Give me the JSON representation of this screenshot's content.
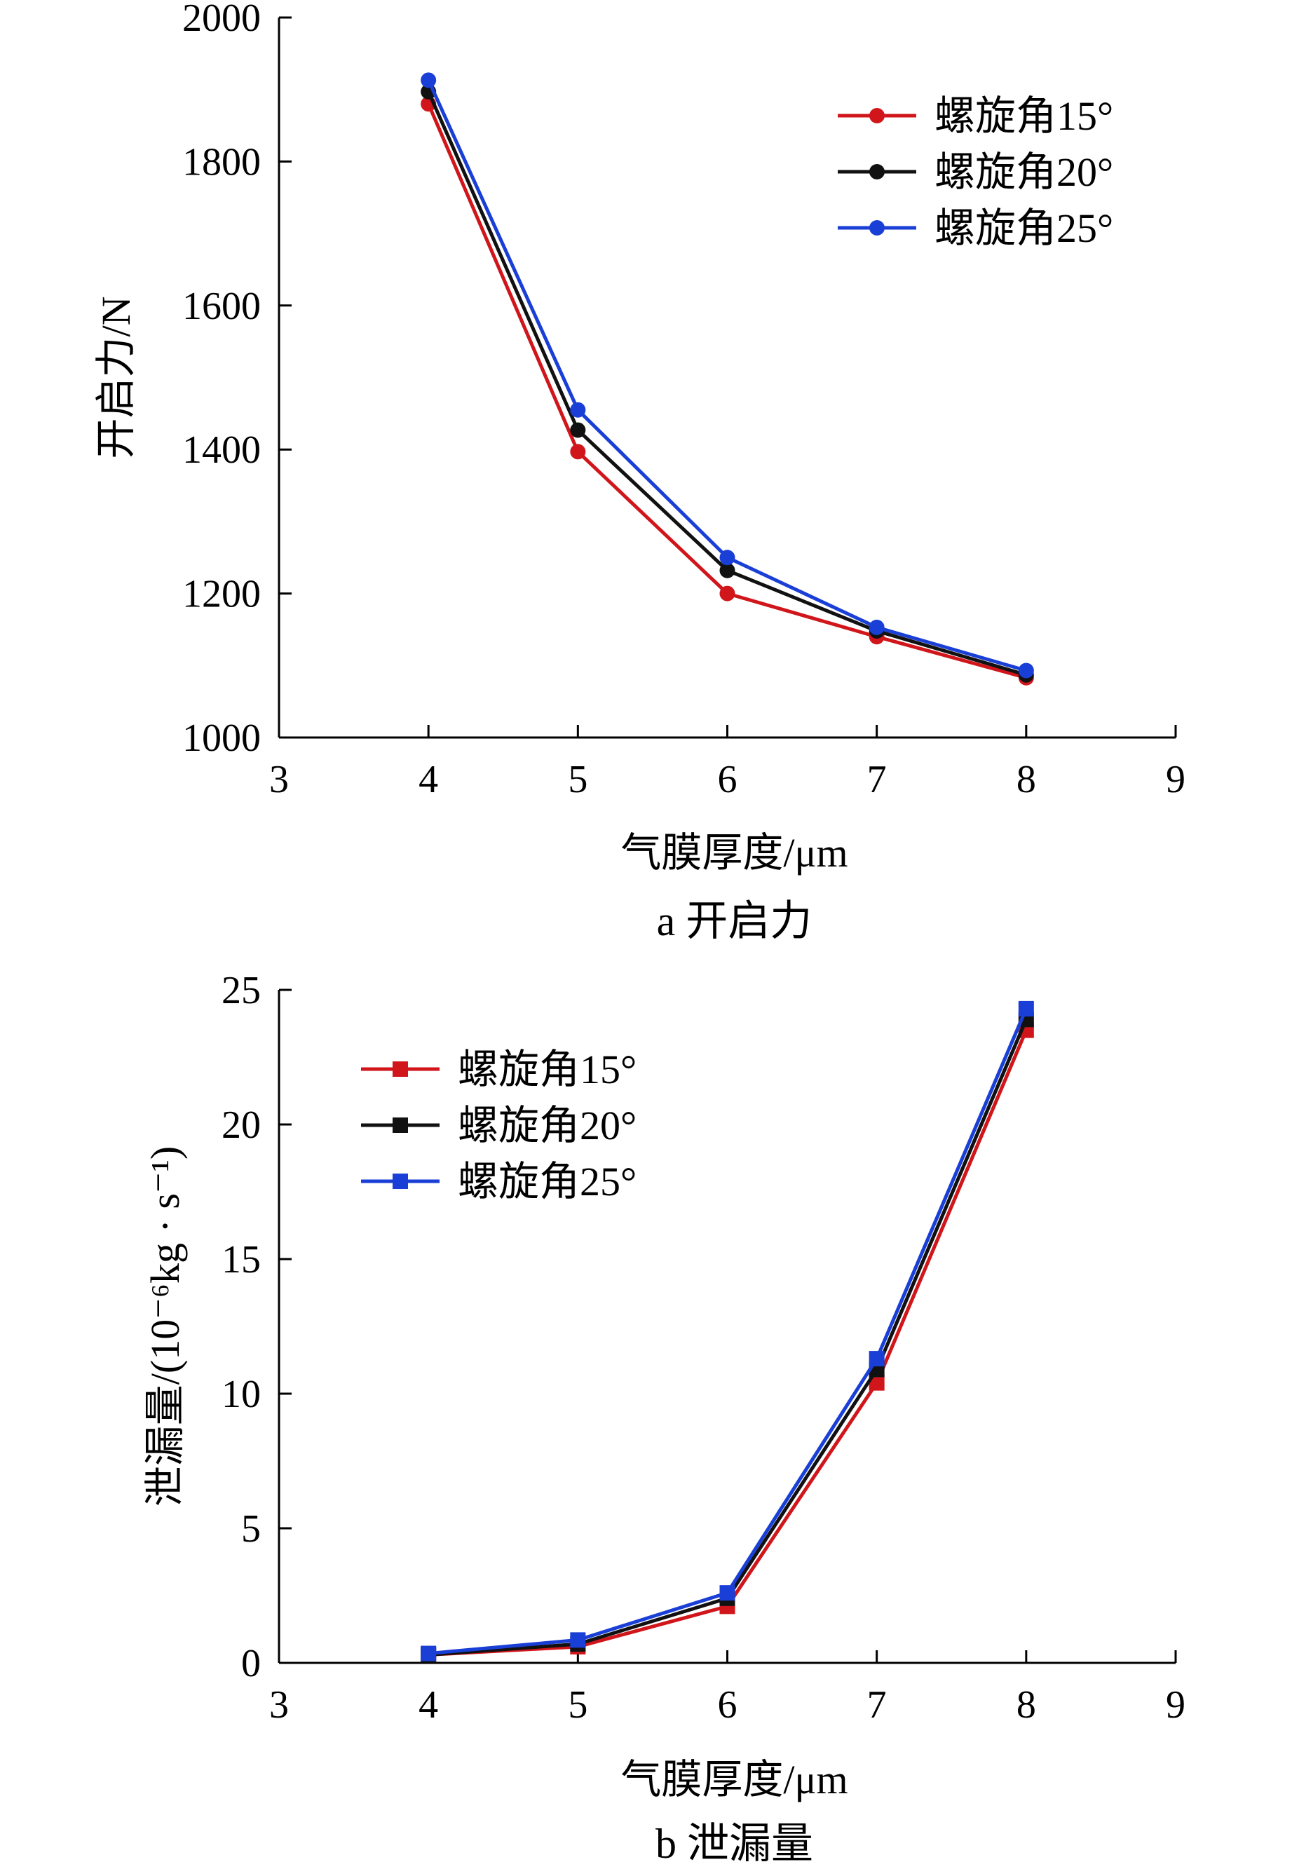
{
  "chart_data": [
    {
      "type": "line",
      "marker": "circle",
      "caption": "a  开启力",
      "xlabel": "气膜厚度/μm",
      "ylabel": "开启力/N",
      "xlim": [
        3,
        9
      ],
      "ylim": [
        1000,
        2000
      ],
      "xticks": [
        3,
        4,
        5,
        6,
        7,
        8,
        9
      ],
      "yticks": [
        1000,
        1200,
        1400,
        1600,
        1800,
        2000
      ],
      "legend_position": "top-right",
      "x": [
        4,
        5,
        6,
        7,
        8
      ],
      "series": [
        {
          "name": "螺旋角15°",
          "color": "#d0161b",
          "values": [
            1880,
            1397,
            1200,
            1140,
            1083
          ]
        },
        {
          "name": "螺旋角20°",
          "color": "#111111",
          "values": [
            1897,
            1427,
            1232,
            1148,
            1087
          ]
        },
        {
          "name": "螺旋角25°",
          "color": "#1a3fd6",
          "values": [
            1913,
            1455,
            1250,
            1153,
            1093
          ]
        }
      ]
    },
    {
      "type": "line",
      "marker": "square",
      "caption": "b  泄漏量",
      "xlabel": "气膜厚度/μm",
      "ylabel": "泄漏量/(10⁻⁶kg · s⁻¹)",
      "xlim": [
        3,
        9
      ],
      "ylim": [
        0,
        25
      ],
      "xticks": [
        3,
        4,
        5,
        6,
        7,
        8,
        9
      ],
      "yticks": [
        0,
        5,
        10,
        15,
        20,
        25
      ],
      "legend_position": "top-left",
      "x": [
        4,
        5,
        6,
        7,
        8
      ],
      "series": [
        {
          "name": "螺旋角15°",
          "color": "#d0161b",
          "values": [
            0.3,
            0.6,
            2.1,
            10.4,
            23.5
          ]
        },
        {
          "name": "螺旋角20°",
          "color": "#111111",
          "values": [
            0.3,
            0.7,
            2.4,
            10.9,
            23.9
          ]
        },
        {
          "name": "螺旋角25°",
          "color": "#1a3fd6",
          "values": [
            0.35,
            0.85,
            2.6,
            11.3,
            24.3
          ]
        }
      ]
    }
  ]
}
